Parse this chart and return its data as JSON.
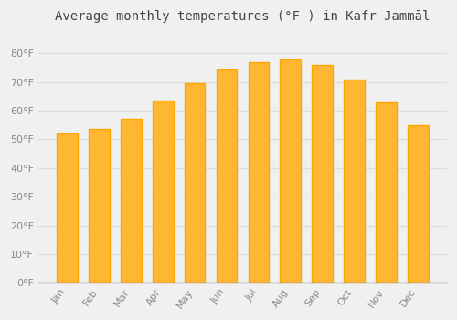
{
  "title": "Average monthly temperatures (°F ) in Kafr Jammāl",
  "months": [
    "Jan",
    "Feb",
    "Mar",
    "Apr",
    "May",
    "Jun",
    "Jul",
    "Aug",
    "Sep",
    "Oct",
    "Nov",
    "Dec"
  ],
  "values": [
    52,
    53.5,
    57,
    63.5,
    69.5,
    74.5,
    77,
    78,
    76,
    71,
    63,
    55
  ],
  "bar_color": "#FFA500",
  "bar_face_color": "#FFB733",
  "background_color": "#F0F0F0",
  "grid_color": "#DDDDDD",
  "ylim": [
    0,
    88
  ],
  "yticks": [
    0,
    10,
    20,
    30,
    40,
    50,
    60,
    70,
    80
  ],
  "title_fontsize": 10,
  "tick_fontsize": 8,
  "tick_color": "#888888",
  "title_color": "#444444"
}
